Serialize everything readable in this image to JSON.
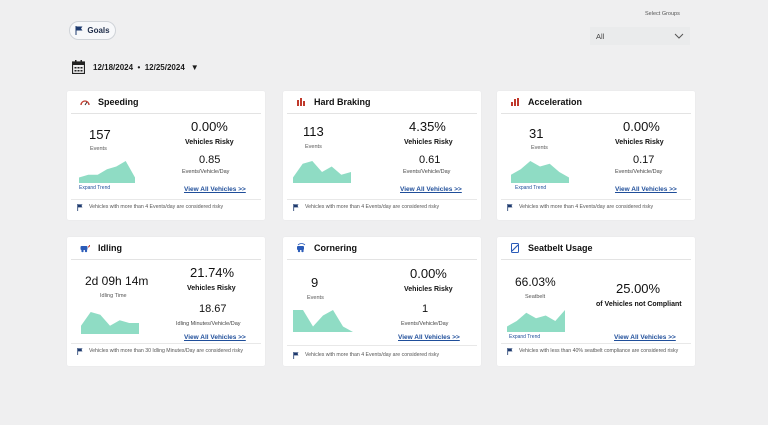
{
  "header": {
    "goals_label": "Goals",
    "select_label": "Select Groups",
    "select_value": "All",
    "date_range": "12/18/2024  •  12/25/2024"
  },
  "colors": {
    "accent": "#8fdcc4",
    "link": "#1f4e9a"
  },
  "cards": {
    "speeding": {
      "title": "Speeding",
      "events": "157",
      "events_label": "Events",
      "pct": "0.00%",
      "risky_label": "Vehicles Risky",
      "rate": "0.85",
      "rate_label": "Events/Vehicle/Day",
      "expand": "Expand Trend",
      "view_all": "View All Vehicles >>",
      "note": "Vehicles with more than 4 Events/day are considered risky",
      "trend": [
        2,
        3,
        3,
        5,
        6,
        8,
        2
      ]
    },
    "hard_braking": {
      "title": "Hard Braking",
      "events": "113",
      "events_label": "Events",
      "pct": "4.35%",
      "risky_label": "Vehicles Risky",
      "rate": "0.61",
      "rate_label": "Events/Vehicle/Day",
      "view_all": "View All Vehicles >>",
      "note": "Vehicles with more than 4 Events/day are considered risky",
      "trend": [
        2,
        7,
        8,
        4,
        6,
        3,
        4
      ]
    },
    "acceleration": {
      "title": "Acceleration",
      "events": "31",
      "events_label": "Events",
      "pct": "0.00%",
      "risky_label": "Vehicles Risky",
      "rate": "0.17",
      "rate_label": "Events/Vehicle/Day",
      "expand": "Expand Trend",
      "view_all": "View All Vehicles >>",
      "note": "Vehicles with more than 4 Events/day are considered risky",
      "trend": [
        3,
        5,
        8,
        6,
        7,
        4,
        2
      ]
    },
    "idling": {
      "title": "Idling",
      "events": "2d 09h 14m",
      "events_label": "Idling Time",
      "pct": "21.74%",
      "risky_label": "Vehicles Risky",
      "rate": "18.67",
      "rate_label": "Idling Minutes/Vehicle/Day",
      "view_all": "View All Vehicles >>",
      "note": "Vehicles with more than 30 Idling Minutes/Day are considered risky",
      "trend": [
        3,
        8,
        7,
        3,
        5,
        4,
        4
      ]
    },
    "cornering": {
      "title": "Cornering",
      "events": "9",
      "events_label": "Events",
      "pct": "0.00%",
      "risky_label": "Vehicles Risky",
      "rate": "1",
      "rate_label": "Events/Vehicle/Day",
      "view_all": "View All Vehicles >>",
      "note": "Vehicles with more than 4 Events/day are considered risky",
      "trend": [
        8,
        8,
        2,
        6,
        8,
        2,
        0
      ]
    },
    "seatbelt": {
      "title": "Seatbelt Usage",
      "events": "66.03%",
      "events_label": "Seatbelt",
      "pct": "25.00%",
      "risky_label": "of Vehicles not Compliant",
      "expand": "Expand Trend",
      "view_all": "View All Vehicles >>",
      "note": "Vehicles with less than 40% seatbelt compliance are considered risky",
      "trend": [
        2,
        4,
        7,
        5,
        6,
        4,
        8
      ]
    }
  }
}
